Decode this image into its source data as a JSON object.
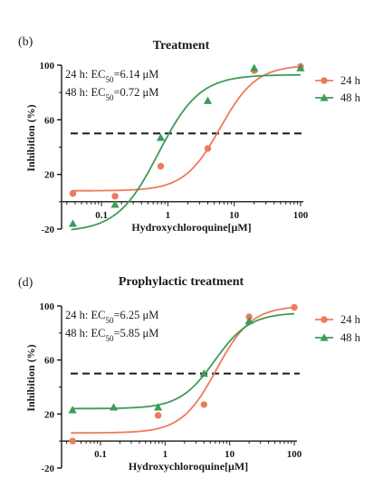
{
  "chart_data": [
    {
      "type": "line",
      "panel_label": "(b)",
      "title": "Treatment",
      "xlabel": "Hydroxychloroquine[μM]",
      "ylabel": "Inhibition (%)",
      "x_scale": "log",
      "xlim": [
        0.025,
        110
      ],
      "ylim": [
        -20,
        100
      ],
      "x_ticks": [
        "0.1",
        "1",
        "10",
        "100"
      ],
      "y_ticks": [
        "-20",
        "20",
        "60",
        "100"
      ],
      "reference_line": 50,
      "annotations": [
        "24 h: EC50=6.14 μM",
        "48 h: EC50=0.72 μM"
      ],
      "series": [
        {
          "name": "24 h",
          "color": "#ee7b5a",
          "marker": "circle",
          "ec50": 6.14,
          "bottom": 8,
          "top": 100,
          "x": [
            0.037,
            0.16,
            0.78,
            4.0,
            20,
            100
          ],
          "y": [
            6,
            4,
            26,
            39,
            96,
            99
          ]
        },
        {
          "name": "48 h",
          "color": "#3e9b5a",
          "marker": "triangle",
          "ec50": 0.72,
          "bottom": -22,
          "top": 93,
          "x": [
            0.037,
            0.16,
            0.78,
            4.0,
            20,
            100
          ],
          "y": [
            -16,
            -2,
            47,
            74,
            98,
            98
          ]
        }
      ]
    },
    {
      "type": "line",
      "panel_label": "(d)",
      "title": "Prophylactic treatment",
      "xlabel": "Hydroxychloroquine[μM]",
      "ylabel": "Inhibition (%)",
      "x_scale": "log",
      "xlim": [
        0.025,
        110
      ],
      "ylim": [
        -20,
        100
      ],
      "x_ticks": [
        "0.1",
        "1",
        "10",
        "100"
      ],
      "y_ticks": [
        "-20",
        "20",
        "60",
        "100"
      ],
      "reference_line": 50,
      "annotations": [
        "24 h: EC50=6.25 μM",
        "48 h: EC50=5.85 μM"
      ],
      "series": [
        {
          "name": "24 h",
          "color": "#ee7b5a",
          "marker": "circle",
          "ec50": 6.25,
          "bottom": 6,
          "top": 100,
          "x": [
            0.037,
            0.78,
            4.0,
            20,
            100
          ],
          "y": [
            0,
            19,
            27,
            92,
            99
          ]
        },
        {
          "name": "48 h",
          "color": "#3e9b5a",
          "marker": "triangle",
          "ec50": 5.85,
          "bottom": 24,
          "top": 95,
          "x": [
            0.037,
            0.16,
            0.78,
            4.0,
            20
          ],
          "y": [
            23,
            25,
            25,
            50,
            89
          ]
        }
      ]
    }
  ]
}
